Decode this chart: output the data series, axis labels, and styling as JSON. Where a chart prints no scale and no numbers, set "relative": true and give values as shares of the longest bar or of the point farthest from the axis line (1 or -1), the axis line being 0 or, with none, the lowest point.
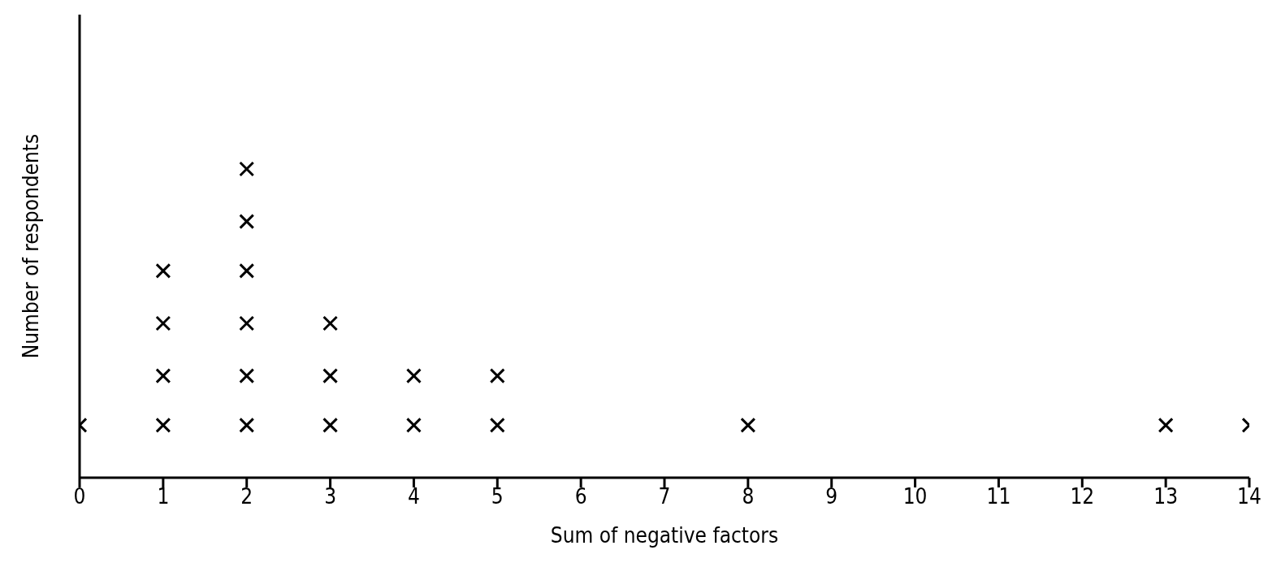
{
  "chart_data": {
    "type": "scatter",
    "xlabel": "Sum of negative factors",
    "ylabel": "Number of respondents",
    "relative": true,
    "marker": "cross",
    "color": "#000000",
    "x": [
      0,
      1,
      1,
      1,
      1,
      2,
      2,
      2,
      2,
      2,
      2,
      3,
      3,
      3,
      4,
      4,
      5,
      5,
      8,
      13,
      14
    ],
    "values": [
      0.17,
      0.17,
      0.33,
      0.5,
      0.67,
      0.17,
      0.33,
      0.5,
      0.67,
      0.83,
      1,
      0.17,
      0.33,
      0.5,
      0.17,
      0.33,
      0.17,
      0.33,
      0.17,
      0.17,
      0.17
    ],
    "xlim": [
      0,
      14
    ],
    "xticks": [
      0,
      1,
      2,
      3,
      4,
      5,
      6,
      7,
      8,
      9,
      10,
      11,
      12,
      13,
      14
    ],
    "grid": false,
    "legend": false
  }
}
